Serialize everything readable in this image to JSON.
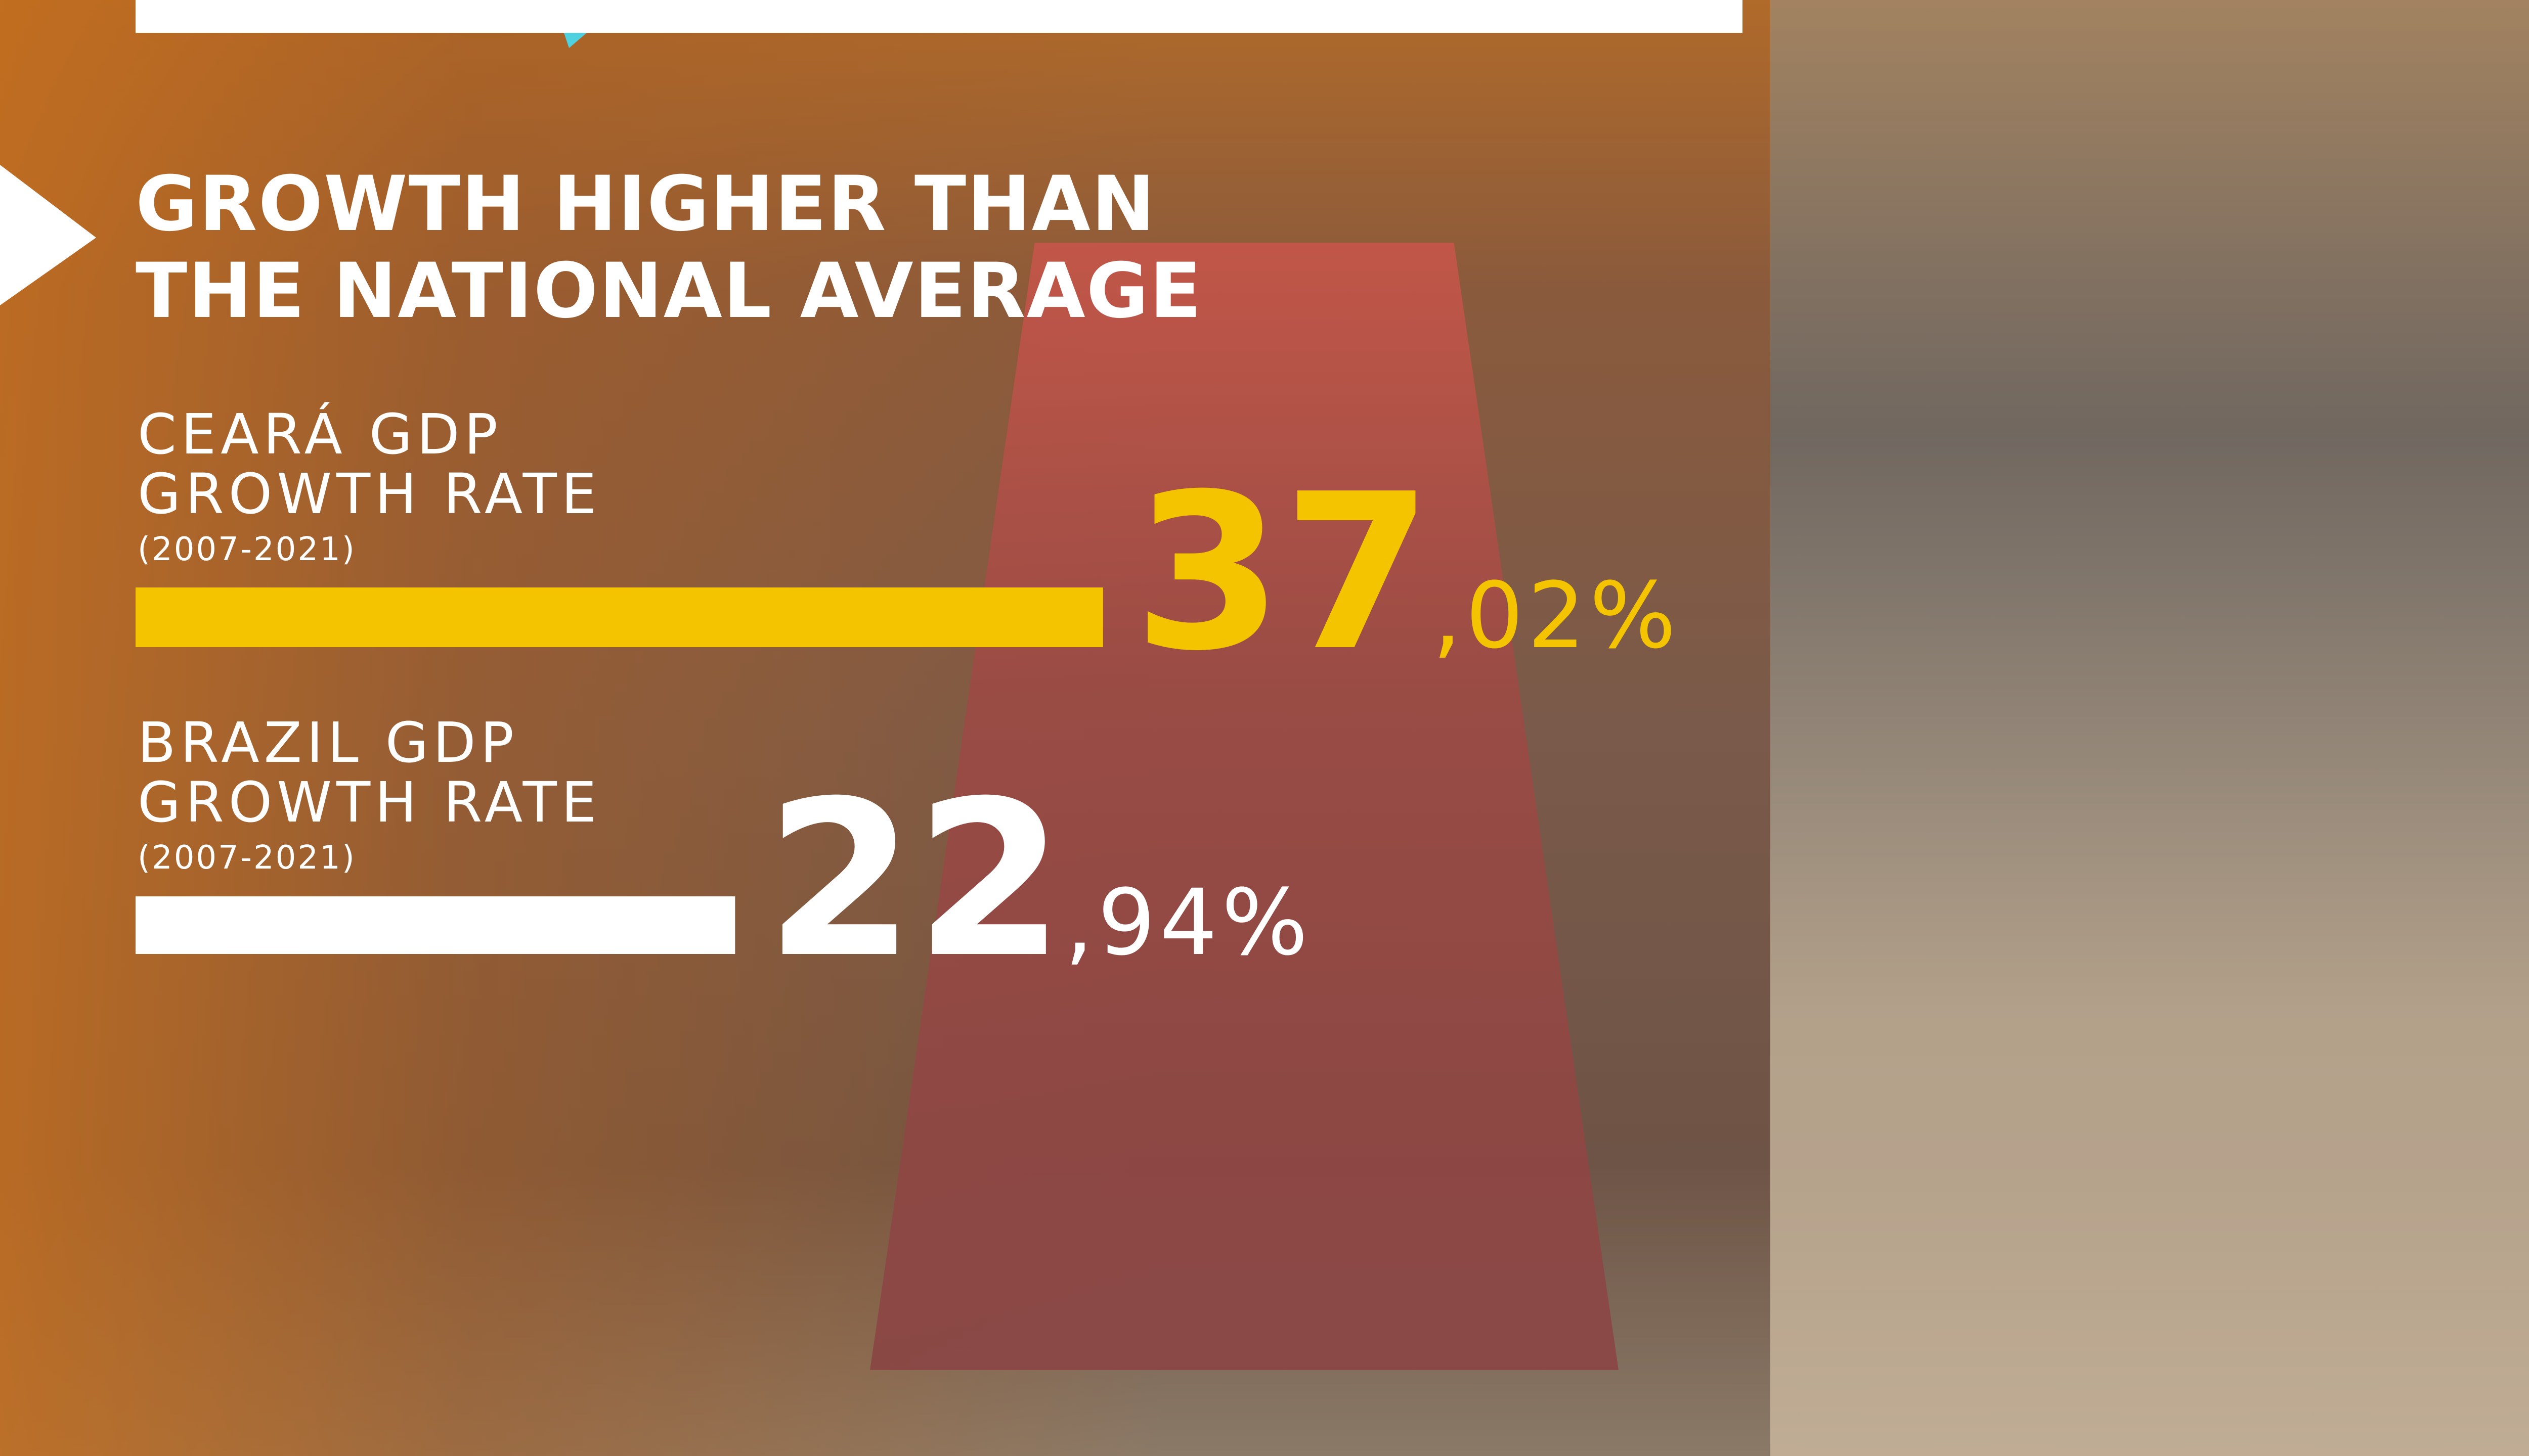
{
  "chart_data": {
    "type": "bar",
    "title": "GROWTH HIGHER THAN THE NATIONAL AVERAGE",
    "categories": [
      "CEARÁ GDP GROWTH RATE",
      "BRAZIL GDP GROWTH RATE"
    ],
    "periods": [
      "(2007-2021)",
      "(2007-2021)"
    ],
    "values": [
      37.02,
      22.94
    ],
    "value_labels": [
      "37,02%",
      "22,94%"
    ],
    "colors": [
      "#f5c400",
      "#ffffff"
    ]
  }
}
